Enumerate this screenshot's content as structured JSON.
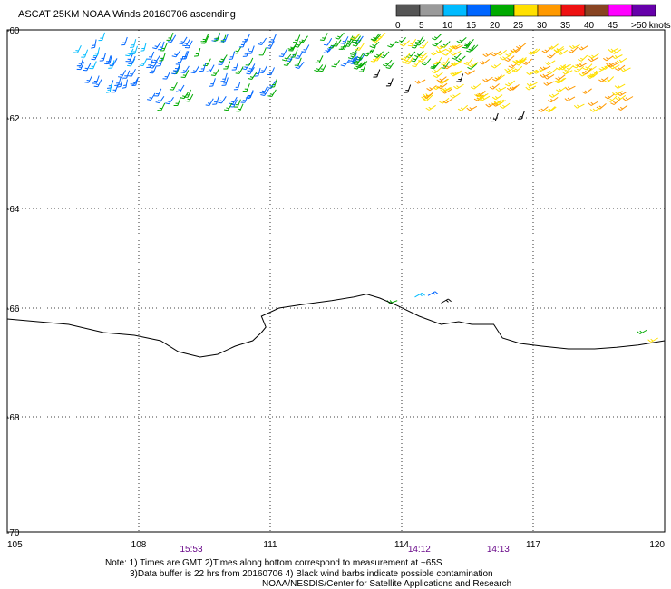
{
  "title": "ASCAT 25KM NOAA Winds 20160706 ascending",
  "legend": {
    "labels": [
      "0",
      "5",
      "10",
      "15",
      "20",
      "25",
      "30",
      "35",
      "40",
      "45",
      ">50 knots"
    ],
    "colors": [
      "#555555",
      "#9a9a9a",
      "#00bbff",
      "#0066ff",
      "#00aa00",
      "#ffe000",
      "#ff9900",
      "#ee1111",
      "#884422",
      "#ff00ff",
      "#6600aa"
    ]
  },
  "axes": {
    "x_ticks": [
      "105",
      "108",
      "111",
      "114",
      "117",
      "120"
    ],
    "y_ticks": [
      "-60",
      "-62",
      "-64",
      "-66",
      "-68",
      "-70"
    ],
    "grid": "dotted"
  },
  "pass_times": [
    {
      "label": "15:53",
      "lon": 109.2
    },
    {
      "label": "14:12",
      "lon": 114.4
    },
    {
      "label": "14:13",
      "lon": 116.2
    }
  ],
  "time_color": "#6a0a8a",
  "notes": {
    "line1": "Note: 1) Times are GMT 2)Times along bottom correspond to measurement at ~65S",
    "line2": "3)Data buffer is 22 hrs from 20160706 4) Black wind barbs indicate possible contamination",
    "line3": "NOAA/NESDIS/Center for Satellite Applications and Research"
  },
  "coastline": [
    [
      105.0,
      -66.2
    ],
    [
      105.7,
      -66.25
    ],
    [
      106.4,
      -66.3
    ],
    [
      107.2,
      -66.45
    ],
    [
      107.9,
      -66.5
    ],
    [
      108.5,
      -66.6
    ],
    [
      108.9,
      -66.8
    ],
    [
      109.4,
      -66.9
    ],
    [
      109.8,
      -66.85
    ],
    [
      110.2,
      -66.7
    ],
    [
      110.6,
      -66.6
    ],
    [
      110.8,
      -66.45
    ],
    [
      110.9,
      -66.35
    ],
    [
      110.8,
      -66.15
    ],
    [
      111.2,
      -66.0
    ],
    [
      111.8,
      -65.92
    ],
    [
      112.4,
      -65.85
    ],
    [
      112.9,
      -65.78
    ],
    [
      113.2,
      -65.72
    ],
    [
      113.5,
      -65.8
    ],
    [
      113.9,
      -65.95
    ],
    [
      114.4,
      -66.15
    ],
    [
      114.9,
      -66.3
    ],
    [
      115.3,
      -66.25
    ],
    [
      115.6,
      -66.3
    ],
    [
      116.1,
      -66.3
    ],
    [
      116.3,
      -66.55
    ],
    [
      116.7,
      -66.65
    ],
    [
      117.2,
      -66.7
    ],
    [
      117.8,
      -66.75
    ],
    [
      118.4,
      -66.75
    ],
    [
      118.9,
      -66.72
    ],
    [
      119.4,
      -66.68
    ],
    [
      120.0,
      -66.6
    ]
  ],
  "wind_regions": [
    {
      "lon": [
        106.5,
        108.6
      ],
      "lat": [
        -60.05,
        -61.3
      ],
      "dir": 200,
      "colors": [
        "#0066ff",
        "#00bbff",
        "#0066ff"
      ],
      "count": 40
    },
    {
      "lon": [
        108.3,
        111.2
      ],
      "lat": [
        -60.05,
        -61.7
      ],
      "dir": 205,
      "colors": [
        "#0066ff",
        "#0066ff",
        "#00aa00"
      ],
      "count": 90
    },
    {
      "lon": [
        111.2,
        113.2
      ],
      "lat": [
        -60.05,
        -60.8
      ],
      "dir": 210,
      "colors": [
        "#00aa00",
        "#0066ff",
        "#00aa00"
      ],
      "count": 40
    },
    {
      "lon": [
        113.0,
        115.8
      ],
      "lat": [
        -60.05,
        -60.8
      ],
      "dir": 220,
      "colors": [
        "#00aa00",
        "#00aa00",
        "#ffe000"
      ],
      "count": 60
    },
    {
      "lon": [
        114.5,
        119.3
      ],
      "lat": [
        -60.3,
        -61.8
      ],
      "dir": 235,
      "colors": [
        "#ffe000",
        "#ffe000",
        "#ff9900"
      ],
      "count": 160
    }
  ],
  "black_barbs": [
    [
      113.5,
      -60.9
    ],
    [
      113.8,
      -61.1
    ],
    [
      114.2,
      -61.25
    ],
    [
      115.4,
      -61.0
    ],
    [
      116.2,
      -61.9
    ],
    [
      116.8,
      -61.85
    ]
  ],
  "coastal_barbs": [
    {
      "lon": 113.9,
      "lat": -65.85,
      "color": "#00aa00",
      "dir": 250
    },
    {
      "lon": 114.3,
      "lat": -65.78,
      "color": "#00bbff",
      "dir": 60
    },
    {
      "lon": 114.6,
      "lat": -65.75,
      "color": "#0066ff",
      "dir": 60
    },
    {
      "lon": 114.9,
      "lat": -65.9,
      "color": "#000000",
      "dir": 60
    },
    {
      "lon": 119.6,
      "lat": -66.4,
      "color": "#00aa00",
      "dir": 240
    },
    {
      "lon": 119.85,
      "lat": -66.55,
      "color": "#ffe000",
      "dir": 240
    }
  ]
}
